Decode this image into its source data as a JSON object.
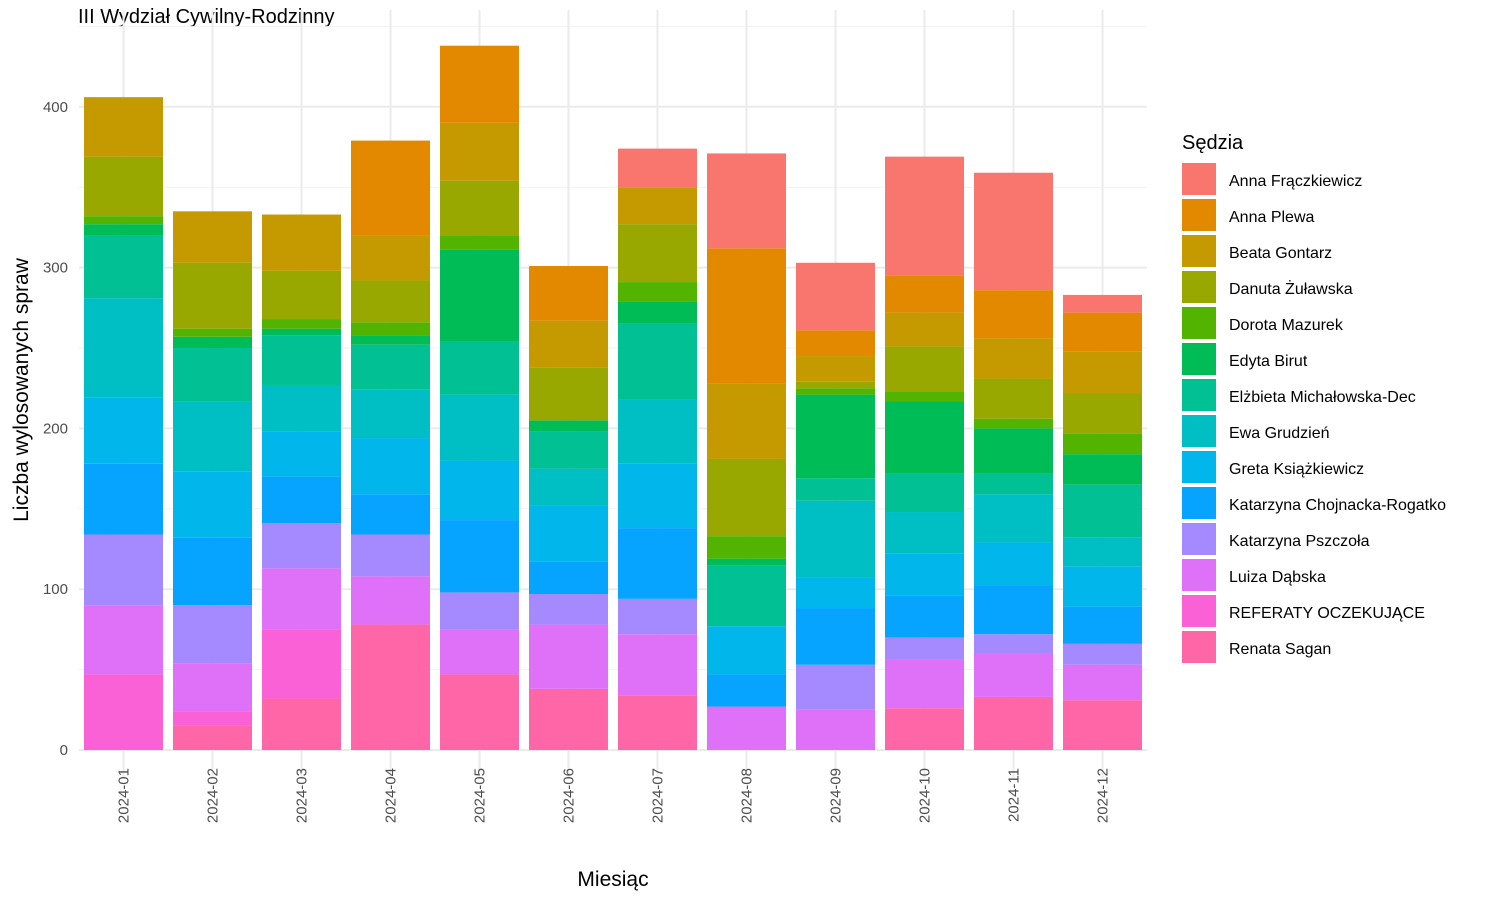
{
  "chart_data": {
    "type": "bar",
    "stacked": true,
    "title": "III Wydział Cywilny-Rodzinny",
    "xlabel": "Miesiąc",
    "ylabel": "Liczba wylosowanych spraw",
    "ylim": [
      0,
      450
    ],
    "yticks": [
      0,
      100,
      200,
      300,
      400
    ],
    "grid": true,
    "legend_title": "Sędzia",
    "legend_position": "right",
    "categories": [
      "2024-01",
      "2024-02",
      "2024-03",
      "2024-04",
      "2024-05",
      "2024-06",
      "2024-07",
      "2024-08",
      "2024-09",
      "2024-10",
      "2024-11",
      "2024-12"
    ],
    "series": [
      {
        "name": "Anna Frączkiewicz",
        "color": "#F8766D",
        "values": [
          0,
          0,
          0,
          0,
          0,
          0,
          24,
          59,
          42,
          74,
          73,
          11
        ]
      },
      {
        "name": "Anna Plewa",
        "color": "#E38900",
        "values": [
          0,
          0,
          0,
          59,
          48,
          34,
          0,
          84,
          16,
          23,
          30,
          24
        ]
      },
      {
        "name": "Beata Gontarz",
        "color": "#C49A00",
        "values": [
          37,
          32,
          35,
          28,
          36,
          29,
          23,
          47,
          16,
          21,
          25,
          26
        ]
      },
      {
        "name": "Danuta Żuławska",
        "color": "#99A800",
        "values": [
          37,
          41,
          30,
          26,
          34,
          33,
          36,
          48,
          4,
          28,
          25,
          25
        ]
      },
      {
        "name": "Dorota Mazurek",
        "color": "#53B400",
        "values": [
          5,
          5,
          6,
          8,
          9,
          0,
          12,
          14,
          4,
          6,
          6,
          13
        ]
      },
      {
        "name": "Edyta Birut",
        "color": "#00BC56",
        "values": [
          7,
          7,
          4,
          6,
          57,
          7,
          14,
          4,
          52,
          45,
          28,
          19
        ]
      },
      {
        "name": "Elżbieta Michałowska-Dec",
        "color": "#00C094",
        "values": [
          39,
          33,
          31,
          28,
          33,
          23,
          47,
          38,
          14,
          24,
          13,
          33
        ]
      },
      {
        "name": "Ewa Grudzień",
        "color": "#00BFC4",
        "values": [
          62,
          44,
          29,
          30,
          41,
          23,
          40,
          0,
          48,
          26,
          30,
          18
        ]
      },
      {
        "name": "Greta Książkiewicz",
        "color": "#00B6EB",
        "values": [
          41,
          41,
          28,
          35,
          37,
          35,
          40,
          30,
          19,
          26,
          27,
          25
        ]
      },
      {
        "name": "Katarzyna Chojnacka-Rogatko",
        "color": "#06A4FF",
        "values": [
          44,
          42,
          29,
          25,
          45,
          20,
          44,
          20,
          35,
          26,
          30,
          23
        ]
      },
      {
        "name": "Katarzyna Pszczoła",
        "color": "#A58AFF",
        "values": [
          44,
          36,
          28,
          26,
          23,
          19,
          22,
          0,
          28,
          14,
          12,
          13
        ]
      },
      {
        "name": "Luiza Dąbska",
        "color": "#DF70F8",
        "values": [
          43,
          30,
          38,
          30,
          28,
          40,
          38,
          27,
          25,
          30,
          27,
          22
        ]
      },
      {
        "name": "REFERATY OCZEKUJĄCE",
        "color": "#FB61D7",
        "values": [
          47,
          9,
          43,
          0,
          0,
          0,
          0,
          0,
          0,
          0,
          0,
          0
        ]
      },
      {
        "name": "Renata Sagan",
        "color": "#FF66A8",
        "values": [
          0,
          15,
          32,
          78,
          47,
          38,
          34,
          0,
          0,
          26,
          33,
          31
        ]
      }
    ]
  }
}
